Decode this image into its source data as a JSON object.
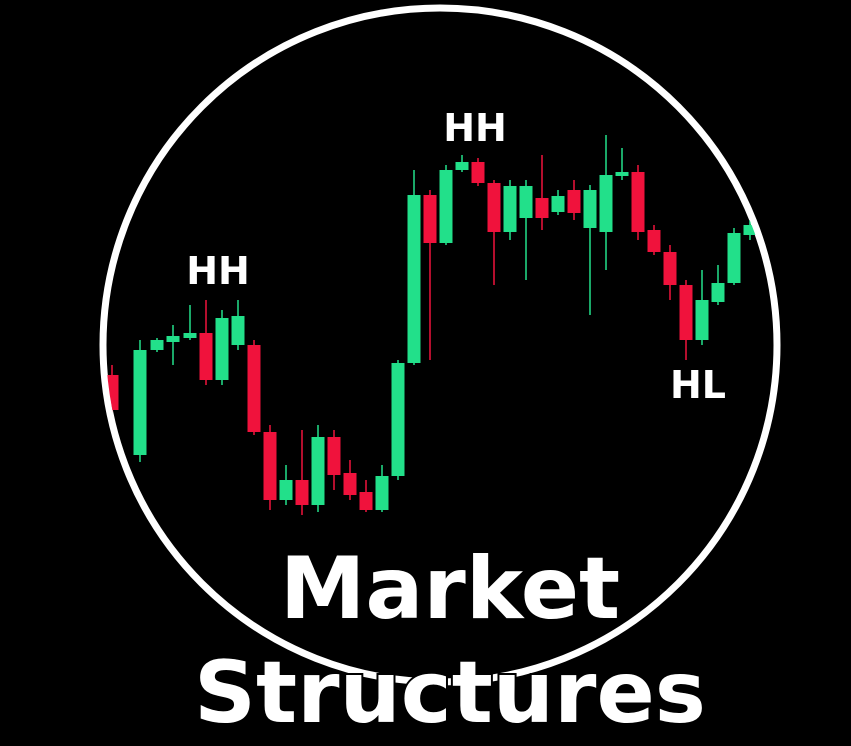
{
  "labels": [
    "HH",
    "HH",
    "HL"
  ],
  "title": {
    "line1": "Market",
    "line2": "Structures"
  }
}
